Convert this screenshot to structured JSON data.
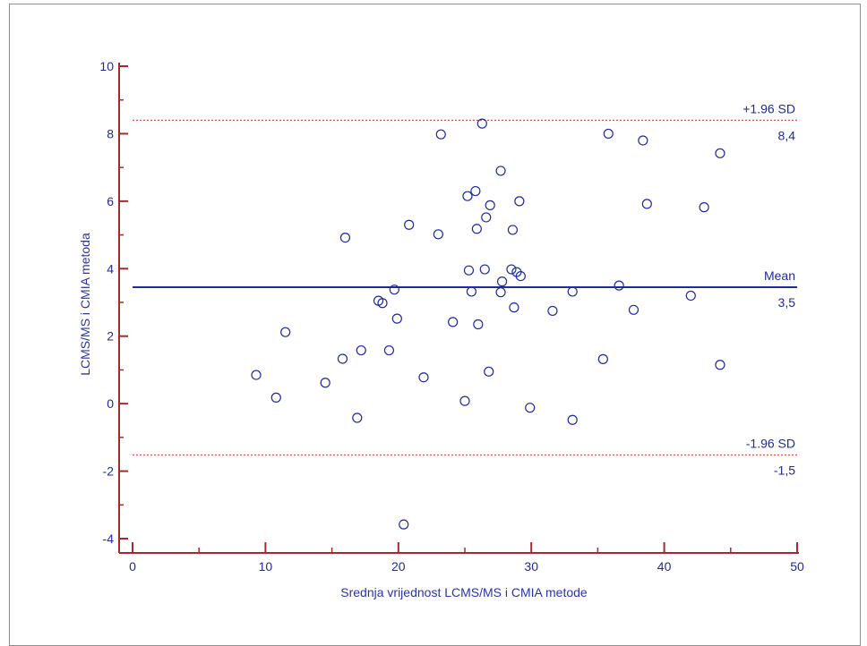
{
  "chart_data": {
    "type": "scatter",
    "title": "",
    "xlabel": "Srednja vrijednost LCMS/MS i CMIA metode",
    "ylabel": "LCMS/MS i CMIA metoda",
    "xlim": [
      0,
      50
    ],
    "ylim": [
      -4,
      10
    ],
    "x_ticks": [
      0,
      10,
      20,
      30,
      40,
      50
    ],
    "y_ticks": [
      -4,
      -2,
      0,
      2,
      4,
      6,
      8,
      10
    ],
    "x_tick_labels": [
      "0",
      "10",
      "20",
      "30",
      "40",
      "50"
    ],
    "y_tick_labels": [
      "-4",
      "-2",
      "0",
      "2",
      "4",
      "6",
      "8",
      "10"
    ],
    "grid": false,
    "reference_lines": [
      {
        "label": "+1.96 SD",
        "value_label": "8,4",
        "y": 8.4,
        "style": "dotted",
        "color": "#d9534f"
      },
      {
        "label": "Mean",
        "value_label": "3,5",
        "y": 3.45,
        "style": "solid",
        "color": "#1f2a9c"
      },
      {
        "label": "-1.96 SD",
        "value_label": "-1,5",
        "y": -1.52,
        "style": "dotted",
        "color": "#d9534f"
      }
    ],
    "axis_color": "#a52a2a",
    "marker_color": "#1f2a9c",
    "points": [
      {
        "x": 9.3,
        "y": 0.85
      },
      {
        "x": 10.8,
        "y": 0.18
      },
      {
        "x": 11.5,
        "y": 2.12
      },
      {
        "x": 14.5,
        "y": 0.62
      },
      {
        "x": 15.8,
        "y": 1.33
      },
      {
        "x": 16.0,
        "y": 4.92
      },
      {
        "x": 16.9,
        "y": -0.42
      },
      {
        "x": 17.2,
        "y": 1.58
      },
      {
        "x": 18.5,
        "y": 3.05
      },
      {
        "x": 18.8,
        "y": 2.98
      },
      {
        "x": 19.3,
        "y": 1.58
      },
      {
        "x": 19.7,
        "y": 3.38
      },
      {
        "x": 19.9,
        "y": 2.52
      },
      {
        "x": 20.4,
        "y": -3.58
      },
      {
        "x": 20.8,
        "y": 5.3
      },
      {
        "x": 21.9,
        "y": 0.78
      },
      {
        "x": 23.0,
        "y": 5.02
      },
      {
        "x": 23.2,
        "y": 7.98
      },
      {
        "x": 24.1,
        "y": 2.42
      },
      {
        "x": 25.0,
        "y": 0.08
      },
      {
        "x": 25.2,
        "y": 6.15
      },
      {
        "x": 25.3,
        "y": 3.95
      },
      {
        "x": 25.5,
        "y": 3.32
      },
      {
        "x": 25.8,
        "y": 6.3
      },
      {
        "x": 25.9,
        "y": 5.18
      },
      {
        "x": 26.0,
        "y": 2.35
      },
      {
        "x": 26.3,
        "y": 8.3
      },
      {
        "x": 26.5,
        "y": 3.98
      },
      {
        "x": 26.6,
        "y": 5.52
      },
      {
        "x": 26.8,
        "y": 0.95
      },
      {
        "x": 26.9,
        "y": 5.88
      },
      {
        "x": 27.7,
        "y": 6.9
      },
      {
        "x": 27.7,
        "y": 3.3
      },
      {
        "x": 27.8,
        "y": 3.62
      },
      {
        "x": 28.5,
        "y": 3.98
      },
      {
        "x": 28.6,
        "y": 5.15
      },
      {
        "x": 28.7,
        "y": 2.85
      },
      {
        "x": 28.9,
        "y": 3.9
      },
      {
        "x": 29.2,
        "y": 3.78
      },
      {
        "x": 29.1,
        "y": 6.0
      },
      {
        "x": 29.9,
        "y": -0.12
      },
      {
        "x": 31.6,
        "y": 2.75
      },
      {
        "x": 33.1,
        "y": -0.48
      },
      {
        "x": 33.1,
        "y": 3.32
      },
      {
        "x": 35.4,
        "y": 1.32
      },
      {
        "x": 35.8,
        "y": 8.0
      },
      {
        "x": 36.6,
        "y": 3.5
      },
      {
        "x": 37.7,
        "y": 2.78
      },
      {
        "x": 38.4,
        "y": 7.8
      },
      {
        "x": 38.7,
        "y": 5.92
      },
      {
        "x": 42.0,
        "y": 3.2
      },
      {
        "x": 43.0,
        "y": 5.82
      },
      {
        "x": 44.2,
        "y": 7.42
      },
      {
        "x": 44.2,
        "y": 1.15
      }
    ]
  }
}
